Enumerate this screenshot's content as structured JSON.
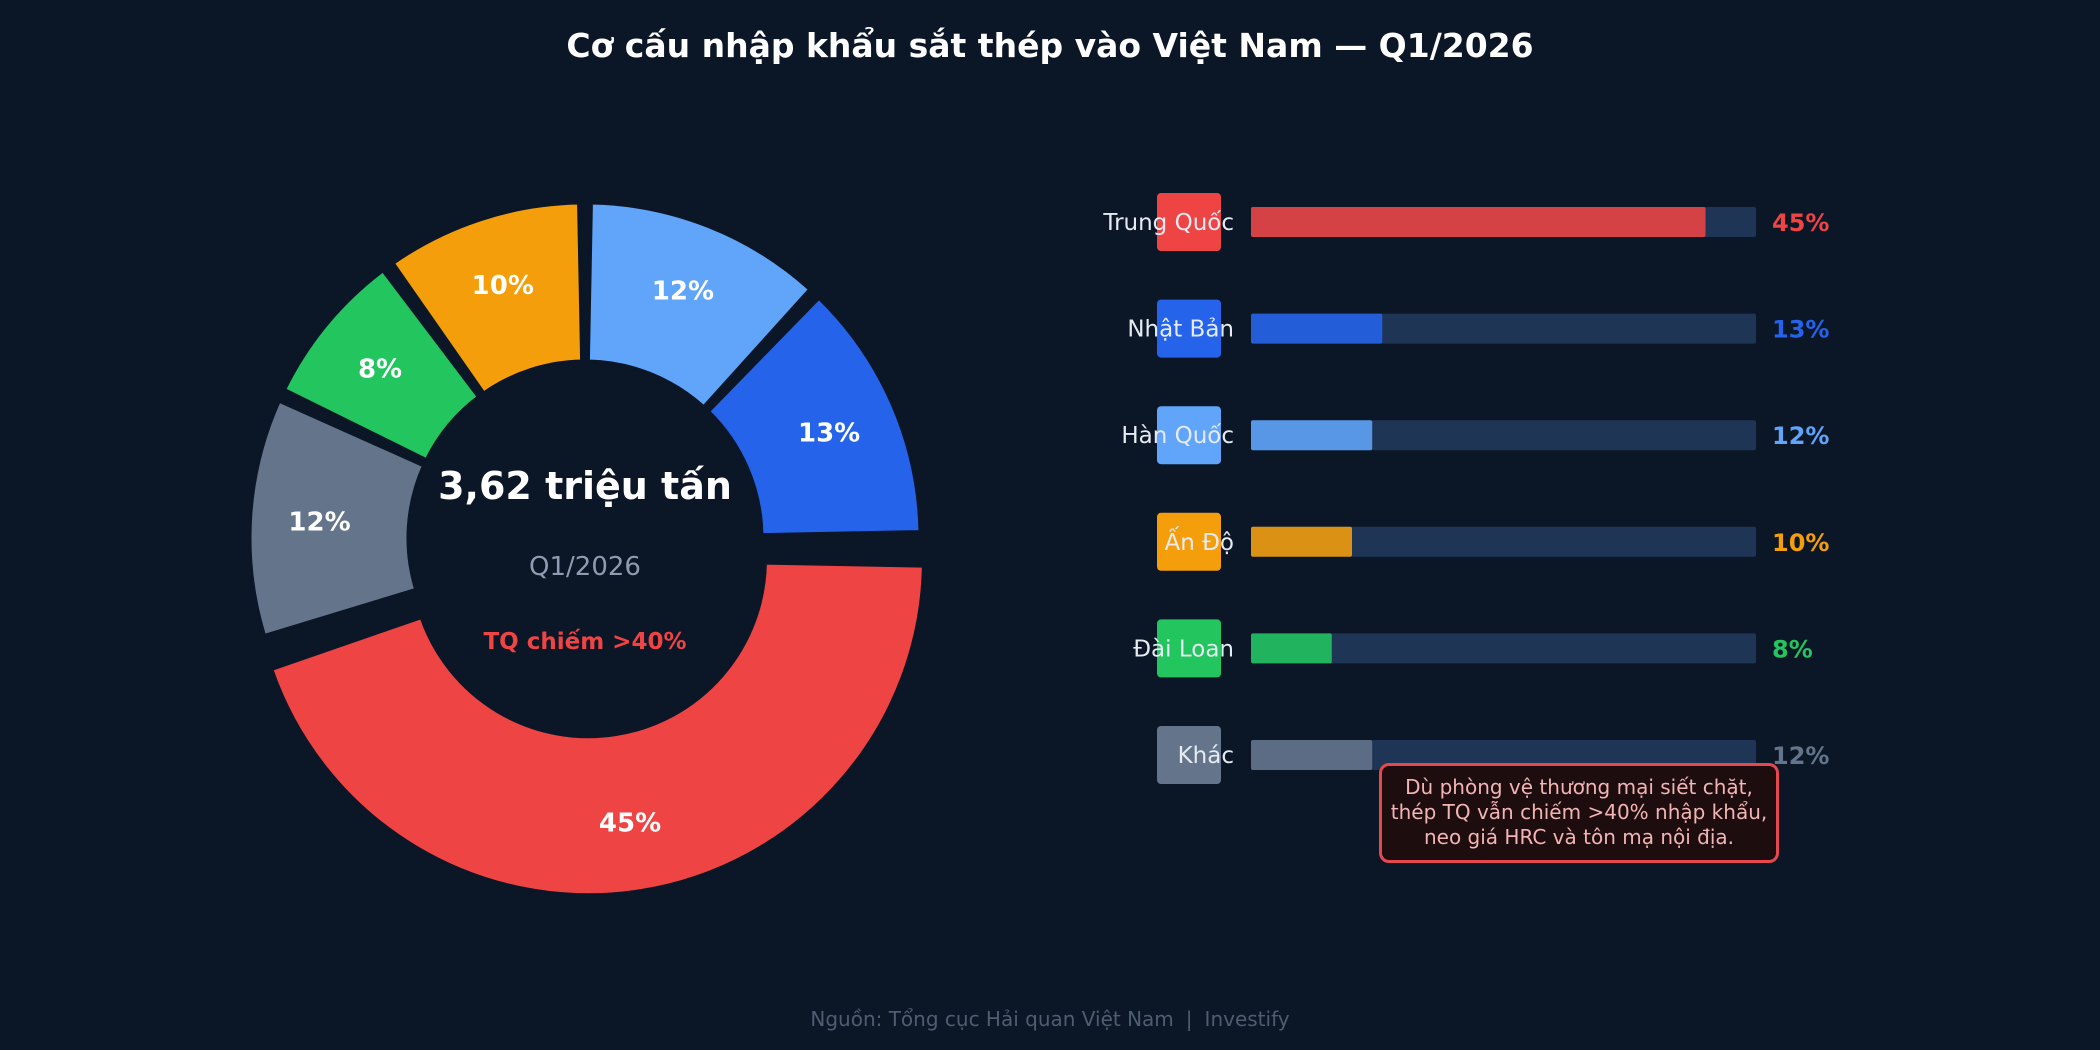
{
  "title": "Cơ cấu nhập khẩu sắt thép vào Việt Nam — Q1/2026",
  "center": {
    "value": "3,62 triệu tấn",
    "period": "Q1/2026",
    "highlight": "TQ chiếm >40%"
  },
  "note": [
    "Dù phòng vệ thương mại siết chặt,",
    "thép TQ vẫn chiếm >40% nhập khẩu,",
    "neo giá HRC và tôn mạ nội địa."
  ],
  "footer": {
    "source": "Nguồn: Tổng cục Hải quan Việt Nam",
    "separator": "|",
    "brand": "Investify"
  },
  "colors": {
    "background": "#0b1627",
    "track": "#1f3556",
    "note_border": "#e5484d"
  },
  "chart_data": [
    {
      "type": "pie",
      "style": "donut",
      "title": "Cơ cấu nhập khẩu sắt thép vào Việt Nam — Q1/2026",
      "slice_order_clockwise_from_top": [
        "Khác",
        "Đài Loan",
        "Ấn Độ",
        "Hàn Quốc",
        "Nhật Bản",
        "Trung Quốc"
      ],
      "categories": [
        "Trung Quốc",
        "Nhật Bản",
        "Hàn Quốc",
        "Ấn Độ",
        "Đài Loan",
        "Khác"
      ],
      "values": [
        45,
        13,
        12,
        10,
        8,
        12
      ],
      "labels": [
        "45%",
        "13%",
        "12%",
        "10%",
        "8%",
        "12%"
      ],
      "colors": [
        "#ef4444",
        "#2563eb",
        "#60a5fa",
        "#f59e0b",
        "#22c55e",
        "#64748b"
      ]
    },
    {
      "type": "bar",
      "orientation": "horizontal",
      "categories": [
        "Trung Quốc",
        "Nhật Bản",
        "Hàn Quốc",
        "Ấn Độ",
        "Đài Loan",
        "Khác"
      ],
      "values": [
        45,
        13,
        12,
        10,
        8,
        12
      ],
      "labels": [
        "45%",
        "13%",
        "12%",
        "10%",
        "8%",
        "12%"
      ],
      "xlim": [
        0,
        50
      ],
      "colors": [
        "#ef4444",
        "#2563eb",
        "#60a5fa",
        "#f59e0b",
        "#22c55e",
        "#64748b"
      ]
    }
  ]
}
